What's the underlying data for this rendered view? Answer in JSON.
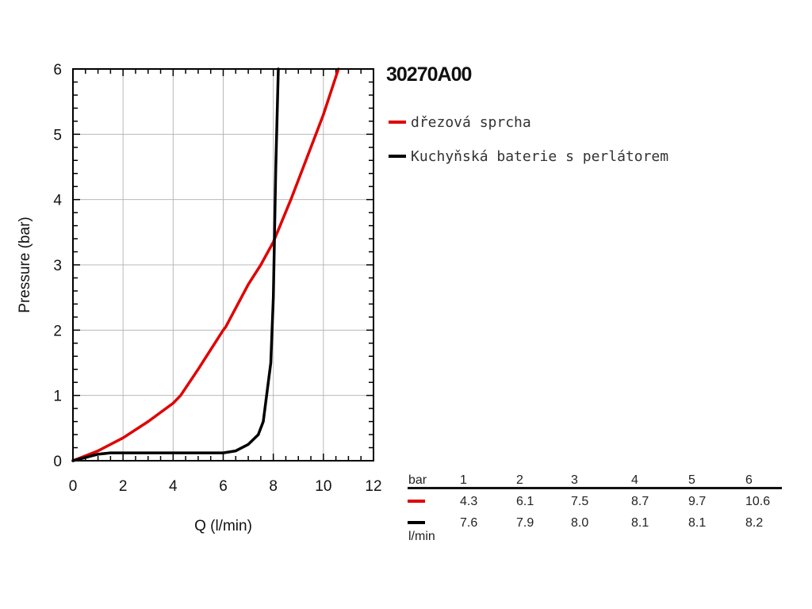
{
  "chart_data": {
    "type": "line",
    "title": "30270A00",
    "xlabel": "Q (l/min)",
    "ylabel": "Pressure (bar)",
    "xlim": [
      0,
      12
    ],
    "ylim": [
      0,
      6
    ],
    "xticks": [
      "0",
      "2",
      "4",
      "6",
      "8",
      "10",
      "12"
    ],
    "yticks": [
      "0",
      "1",
      "2",
      "3",
      "4",
      "5",
      "6"
    ],
    "grid": true,
    "legend_position": "right-top",
    "series": [
      {
        "name": "dřezová sprcha",
        "color": "#e00000",
        "x": [
          0,
          1,
          2,
          3,
          4,
          4.3,
          5,
          6,
          6.1,
          7,
          7.5,
          8,
          8.7,
          9,
          9.7,
          10,
          10.6
        ],
        "y": [
          0,
          0.15,
          0.35,
          0.6,
          0.88,
          1,
          1.4,
          2,
          2.05,
          2.7,
          3,
          3.35,
          4,
          4.3,
          5,
          5.3,
          6
        ]
      },
      {
        "name": "Kuchyňská baterie s perlátorem",
        "color": "#000000",
        "x": [
          0,
          0.5,
          1,
          1.5,
          3,
          5,
          6,
          6.5,
          7,
          7.4,
          7.6,
          7.9,
          8.0,
          8.1,
          8.2
        ],
        "y": [
          0,
          0.05,
          0.1,
          0.12,
          0.12,
          0.12,
          0.12,
          0.15,
          0.25,
          0.4,
          0.6,
          1.5,
          2.5,
          4.5,
          6
        ]
      }
    ]
  },
  "table": {
    "header_label": "bar",
    "unit_label": "l/min",
    "columns": [
      "1",
      "2",
      "3",
      "4",
      "5",
      "6"
    ],
    "rows": [
      {
        "color": "#e00000",
        "values": [
          "4.3",
          "6.1",
          "7.5",
          "8.7",
          "9.7",
          "10.6"
        ]
      },
      {
        "color": "#000000",
        "values": [
          "7.6",
          "7.9",
          "8.0",
          "8.1",
          "8.1",
          "8.2"
        ]
      }
    ]
  }
}
